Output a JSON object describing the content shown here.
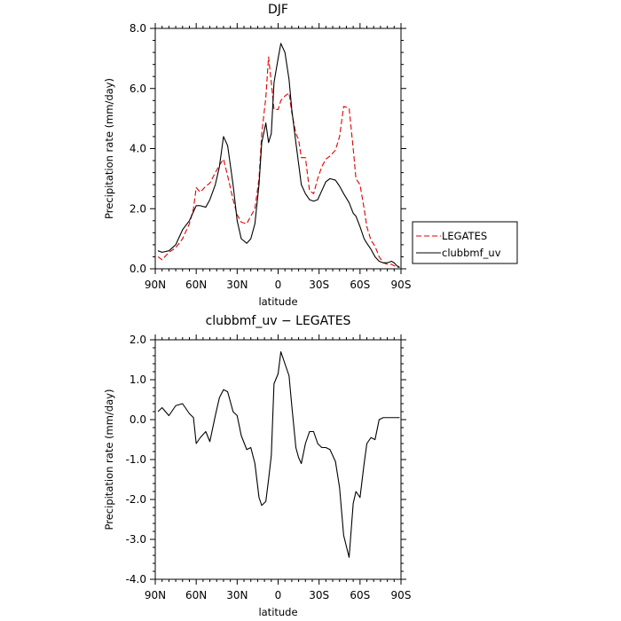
{
  "chart_data": [
    {
      "type": "line",
      "title": "DJF",
      "xlabel": "latitude",
      "ylabel": "Precipitation rate (mm/day)",
      "xticks": [
        "90N",
        "60N",
        "30N",
        "0",
        "30S",
        "60S",
        "90S"
      ],
      "yticks": [
        "0.0",
        "2.0",
        "4.0",
        "6.0",
        "8.0"
      ],
      "xlim": [
        90,
        -90
      ],
      "ylim": [
        0,
        8
      ],
      "grid": false,
      "legend_position": "outside-right",
      "series": [
        {
          "name": "LEGATES",
          "color": "#e00000",
          "dash": "dashed",
          "x": [
            88,
            85,
            80,
            75,
            70,
            65,
            62,
            60,
            57,
            53,
            50,
            46,
            43,
            40,
            37,
            33,
            30,
            27,
            23,
            20,
            17,
            14,
            12,
            9,
            7,
            5,
            3,
            0,
            -2,
            -5,
            -8,
            -10,
            -13,
            -15,
            -17,
            -20,
            -23,
            -26,
            -29,
            -32,
            -35,
            -38,
            -42,
            -45,
            -48,
            -52,
            -55,
            -57,
            -60,
            -63,
            -65,
            -68,
            -71,
            -74,
            -77,
            -80,
            -83,
            -85,
            -87,
            -89
          ],
          "y": [
            0.4,
            0.3,
            0.55,
            0.7,
            1.0,
            1.5,
            2.0,
            2.7,
            2.55,
            2.75,
            2.85,
            3.2,
            3.45,
            3.65,
            3.1,
            2.3,
            1.8,
            1.55,
            1.5,
            1.75,
            2.0,
            3.0,
            4.5,
            5.7,
            7.05,
            6.2,
            5.3,
            5.3,
            5.6,
            5.75,
            5.85,
            5.2,
            4.5,
            4.3,
            3.7,
            3.7,
            2.6,
            2.5,
            3.0,
            3.4,
            3.65,
            3.75,
            3.95,
            4.4,
            5.4,
            5.35,
            4.0,
            3.0,
            2.8,
            2.0,
            1.4,
            0.95,
            0.75,
            0.4,
            0.2,
            0.15,
            0.15,
            0.1,
            0.05,
            0.05
          ]
        },
        {
          "name": "clubbmf_uv",
          "color": "#000000",
          "dash": "solid",
          "x": [
            88,
            85,
            80,
            75,
            70,
            65,
            62,
            60,
            57,
            53,
            50,
            46,
            43,
            40,
            37,
            33,
            30,
            27,
            23,
            20,
            17,
            14,
            12,
            9,
            7,
            5,
            3,
            0,
            -2,
            -5,
            -8,
            -10,
            -13,
            -15,
            -17,
            -20,
            -23,
            -26,
            -29,
            -32,
            -35,
            -38,
            -42,
            -45,
            -48,
            -52,
            -55,
            -57,
            -60,
            -63,
            -65,
            -68,
            -71,
            -74,
            -77,
            -80,
            -83,
            -85,
            -87,
            -89
          ],
          "y": [
            0.6,
            0.55,
            0.6,
            0.8,
            1.3,
            1.6,
            1.9,
            2.1,
            2.1,
            2.05,
            2.3,
            2.8,
            3.4,
            4.4,
            4.1,
            2.8,
            1.6,
            1.0,
            0.85,
            1.0,
            1.5,
            2.8,
            4.2,
            4.85,
            4.2,
            4.5,
            6.2,
            7.0,
            7.5,
            7.2,
            6.3,
            5.3,
            4.2,
            3.5,
            2.8,
            2.5,
            2.3,
            2.25,
            2.3,
            2.6,
            2.9,
            3.0,
            2.95,
            2.75,
            2.5,
            2.2,
            1.85,
            1.75,
            1.4,
            1.0,
            0.85,
            0.65,
            0.4,
            0.25,
            0.2,
            0.2,
            0.25,
            0.2,
            0.1,
            0.05
          ]
        }
      ]
    },
    {
      "type": "line",
      "title": "clubbmf_uv − LEGATES",
      "xlabel": "latitude",
      "ylabel": "Precipitation rate (mm/day)",
      "xticks": [
        "90N",
        "60N",
        "30N",
        "0",
        "30S",
        "60S",
        "90S"
      ],
      "yticks": [
        "-4.0",
        "-3.0",
        "-2.0",
        "-1.0",
        "0.0",
        "1.0",
        "2.0"
      ],
      "xlim": [
        90,
        -90
      ],
      "ylim": [
        -4,
        2
      ],
      "grid": false,
      "series": [
        {
          "color": "#000000",
          "dash": "solid",
          "x": [
            88,
            85,
            80,
            75,
            70,
            65,
            62,
            60,
            57,
            53,
            50,
            46,
            43,
            40,
            37,
            33,
            30,
            27,
            23,
            20,
            17,
            14,
            12,
            9,
            7,
            5,
            3,
            0,
            -2,
            -5,
            -8,
            -10,
            -13,
            -15,
            -17,
            -20,
            -23,
            -26,
            -29,
            -32,
            -35,
            -38,
            -42,
            -45,
            -48,
            -52,
            -55,
            -57,
            -60,
            -63,
            -65,
            -68,
            -71,
            -74,
            -77,
            -80,
            -83,
            -85,
            -87,
            -89
          ],
          "y": [
            0.2,
            0.3,
            0.1,
            0.35,
            0.4,
            0.15,
            0.05,
            -0.6,
            -0.45,
            -0.3,
            -0.55,
            0.1,
            0.55,
            0.75,
            0.7,
            0.2,
            0.1,
            -0.4,
            -0.75,
            -0.7,
            -1.1,
            -1.95,
            -2.15,
            -2.05,
            -1.5,
            -0.9,
            0.9,
            1.15,
            1.7,
            1.4,
            1.1,
            0.35,
            -0.7,
            -0.95,
            -1.1,
            -0.6,
            -0.3,
            -0.3,
            -0.6,
            -0.7,
            -0.7,
            -0.75,
            -1.05,
            -1.7,
            -2.9,
            -3.45,
            -2.1,
            -1.8,
            -1.95,
            -1.1,
            -0.6,
            -0.45,
            -0.5,
            0.0,
            0.05,
            0.05,
            0.05,
            0.05,
            0.05,
            0.05
          ]
        }
      ]
    }
  ]
}
